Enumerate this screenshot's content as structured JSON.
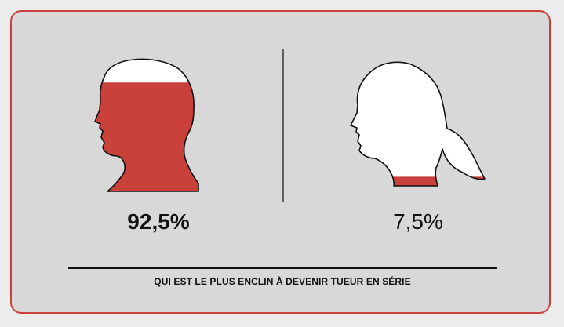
{
  "chart_data": {
    "type": "pictogram",
    "categories": [
      "male",
      "female"
    ],
    "values": [
      92.5,
      7.5
    ],
    "value_labels": [
      "92,5%",
      "7,5%"
    ],
    "unit": "%",
    "title": "QUI EST LE PLUS ENCLIN À DEVENIR TUEUR EN SÉRIE"
  },
  "colors": {
    "fill": "#c9413a",
    "outline": "#111111",
    "empty": "#ffffff",
    "card_border": "#c9413a",
    "card_bg": "#d8d8d8",
    "page_bg": "#ececec"
  },
  "icons": [
    "male-head-icon",
    "female-head-icon"
  ]
}
